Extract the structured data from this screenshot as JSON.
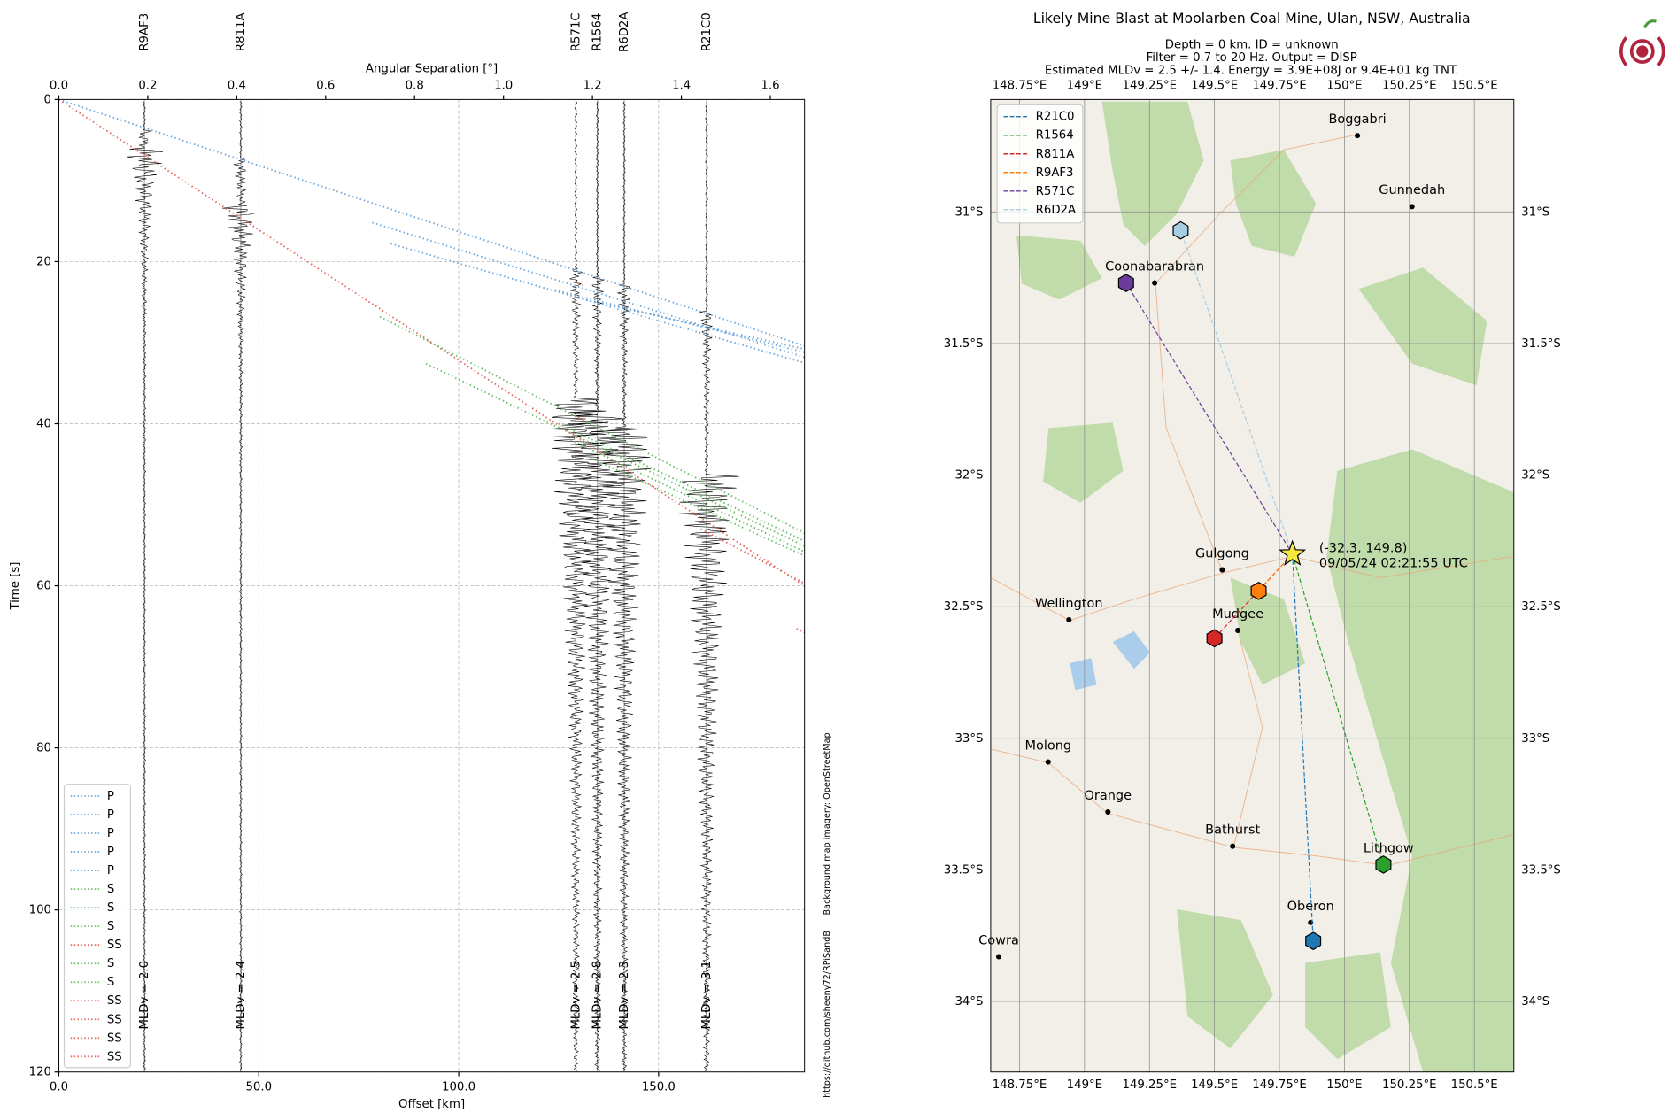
{
  "chart_data": [
    {
      "type": "record-section",
      "x_label": "Offset [km]",
      "y_label": "Time [s]",
      "x2_label": "Angular Separation [°]",
      "xlim": [
        0,
        186.5
      ],
      "ylim": [
        0,
        120
      ],
      "y_inverted": true,
      "x2lim": [
        0,
        1.677
      ],
      "xticks": [
        {
          "value": 0,
          "label": "0.0"
        },
        {
          "value": 50,
          "label": "50.0"
        },
        {
          "value": 100,
          "label": "100.0"
        },
        {
          "value": 150,
          "label": "150.0"
        }
      ],
      "x2ticks": [
        {
          "value": 0,
          "label": "0.0"
        },
        {
          "value": 0.2,
          "label": "0.2"
        },
        {
          "value": 0.4,
          "label": "0.4"
        },
        {
          "value": 0.6,
          "label": "0.6"
        },
        {
          "value": 0.8,
          "label": "0.8"
        },
        {
          "value": 1.0,
          "label": "1.0"
        },
        {
          "value": 1.2,
          "label": "1.2"
        },
        {
          "value": 1.4,
          "label": "1.4"
        },
        {
          "value": 1.6,
          "label": "1.6"
        }
      ],
      "yticks": [
        0,
        20,
        40,
        60,
        80,
        100,
        120
      ],
      "grid": true,
      "legend": "lower left",
      "stations": [
        {
          "name": "R9AF3",
          "color": "#ff7f0e",
          "offset": 21.4,
          "mldv": "MLDv = 2.0"
        },
        {
          "name": "R811A",
          "color": "#d62728",
          "offset": 45.5,
          "mldv": "MLDv = 2.4"
        },
        {
          "name": "R571C",
          "color": "#6a3d9a",
          "offset": 129.3,
          "mldv": "MLDv = 2.5"
        },
        {
          "name": "R1564",
          "color": "#2ca02c",
          "offset": 134.7,
          "mldv": "MLDv = 2.8"
        },
        {
          "name": "R6D2A",
          "color": "#a6cee3",
          "offset": 141.4,
          "mldv": "MLDv = 2.3"
        },
        {
          "name": "R21C0",
          "color": "#1f77b4",
          "offset": 162.0,
          "mldv": "MLDv = 3.1"
        }
      ],
      "series": [
        {
          "name": "P",
          "color": "#6fa8dc",
          "x": [
            0,
            186.5
          ],
          "y": [
            0,
            30.4
          ]
        },
        {
          "name": "P",
          "color": "#6fa8dc",
          "x": [
            78.4,
            186.5
          ],
          "y": [
            15.2,
            31.8
          ]
        },
        {
          "name": "P",
          "color": "#6fa8dc",
          "x": [
            83.0,
            186.5
          ],
          "y": [
            17.8,
            32.5
          ]
        },
        {
          "name": "P",
          "color": "#6fa8dc",
          "x": [
            124,
            186.5
          ],
          "y": [
            23.5,
            31.2
          ]
        },
        {
          "name": "P",
          "color": "#6fa8dc",
          "x": [
            130,
            186.5
          ],
          "y": [
            24.5,
            30.8
          ]
        },
        {
          "name": "S",
          "color": "#6abf69",
          "x": [
            80.3,
            186.5
          ],
          "y": [
            26.8,
            53.5
          ]
        },
        {
          "name": "S",
          "color": "#6abf69",
          "x": [
            91.8,
            186.5
          ],
          "y": [
            32.6,
            55.1
          ]
        },
        {
          "name": "S",
          "color": "#6abf69",
          "x": [
            125,
            186.5
          ],
          "y": [
            40,
            54.5
          ]
        },
        {
          "name": "SS",
          "color": "#e8665f",
          "x": [
            0,
            186.5
          ],
          "y": [
            0,
            60.0
          ]
        },
        {
          "name": "S",
          "color": "#6abf69",
          "x": [
            128,
            186.5
          ],
          "y": [
            42,
            55.8
          ]
        },
        {
          "name": "S",
          "color": "#6abf69",
          "x": [
            132,
            186.5
          ],
          "y": [
            44,
            56.3
          ]
        },
        {
          "name": "SS",
          "color": "#e8665f",
          "x": [
            160.6,
            186.5
          ],
          "y": [
            53.0,
            59.7
          ]
        },
        {
          "name": "SS",
          "color": "#e8665f",
          "x": [
            184.5,
            186.5
          ],
          "y": [
            65.3,
            65.8
          ]
        },
        {
          "name": "SS",
          "color": "#e8665f",
          "x": [
            129,
            131
          ],
          "y": [
            22.5,
            22.9
          ]
        },
        {
          "name": "SS",
          "color": "#e8665f",
          "x": [
            128,
            131
          ],
          "y": [
            38.8,
            39.5
          ]
        }
      ]
    },
    {
      "type": "map",
      "title": "Likely Mine Blast at Moolarben Coal Mine, Ulan, NSW, Australia",
      "subtitle": [
        "Depth = 0 km. ID = unknown",
        "Filter = 0.7 to 20 Hz. Output = DISP",
        "Estimated MLDv = 2.5 +/- 1.4. Energy = 3.9E+08J or 9.4E+01 kg TNT."
      ],
      "xlim": [
        148.639,
        150.652
      ],
      "ylim": [
        -34.268,
        -30.573
      ],
      "xticks": [
        {
          "value": 148.75,
          "label": "148.75°E"
        },
        {
          "value": 149,
          "label": "149°E"
        },
        {
          "value": 149.25,
          "label": "149.25°E"
        },
        {
          "value": 149.5,
          "label": "149.5°E"
        },
        {
          "value": 149.75,
          "label": "149.75°E"
        },
        {
          "value": 150,
          "label": "150°E"
        },
        {
          "value": 150.25,
          "label": "150.25°E"
        },
        {
          "value": 150.5,
          "label": "150.5°E"
        }
      ],
      "yticks": [
        {
          "value": -31,
          "label": "31°S"
        },
        {
          "value": -31.5,
          "label": "31.5°S"
        },
        {
          "value": -32,
          "label": "32°S"
        },
        {
          "value": -32.5,
          "label": "32.5°S"
        },
        {
          "value": -33,
          "label": "33°S"
        },
        {
          "value": -33.5,
          "label": "33.5°S"
        },
        {
          "value": -34,
          "label": "34°S"
        }
      ],
      "legend": "upper left",
      "event": {
        "lon": 149.8,
        "lat": -32.3,
        "label": "(-32.3, 149.8)",
        "time": "09/05/24 02:21:55 UTC",
        "color": "#f5e642"
      },
      "stations": [
        {
          "name": "R21C0",
          "color": "#1f77b4",
          "lon": 149.88,
          "lat": -33.77
        },
        {
          "name": "R1564",
          "color": "#2ca02c",
          "lon": 150.15,
          "lat": -33.48
        },
        {
          "name": "R811A",
          "color": "#d62728",
          "lon": 149.5,
          "lat": -32.62
        },
        {
          "name": "R9AF3",
          "color": "#ff7f0e",
          "lon": 149.67,
          "lat": -32.44
        },
        {
          "name": "R571C",
          "color": "#6a3d9a",
          "lon": 149.16,
          "lat": -31.27
        },
        {
          "name": "R6D2A",
          "color": "#a6cee3",
          "lon": 149.37,
          "lat": -31.07
        }
      ],
      "towns": [
        {
          "name": "Boggabri",
          "lon": 150.05,
          "lat": -30.71
        },
        {
          "name": "Gunnedah",
          "lon": 150.26,
          "lat": -30.98
        },
        {
          "name": "Coonabarabran",
          "lon": 149.27,
          "lat": -31.27
        },
        {
          "name": "Gulgong",
          "lon": 149.53,
          "lat": -32.36
        },
        {
          "name": "Wellington",
          "lon": 148.94,
          "lat": -32.55
        },
        {
          "name": "Mudgee",
          "lon": 149.59,
          "lat": -32.59
        },
        {
          "name": "Molong",
          "lon": 148.86,
          "lat": -33.09
        },
        {
          "name": "Orange",
          "lon": 149.09,
          "lat": -33.28
        },
        {
          "name": "Bathurst",
          "lon": 149.57,
          "lat": -33.41
        },
        {
          "name": "Lithgow",
          "lon": 150.17,
          "lat": -33.48
        },
        {
          "name": "Oberon",
          "lon": 149.87,
          "lat": -33.7
        },
        {
          "name": "Cowra",
          "lon": 148.67,
          "lat": -33.83
        }
      ]
    }
  ],
  "credits": [
    "Background map imagery: OpenStreetMap",
    "https://github.com/sheeny72/RPiSandB"
  ]
}
